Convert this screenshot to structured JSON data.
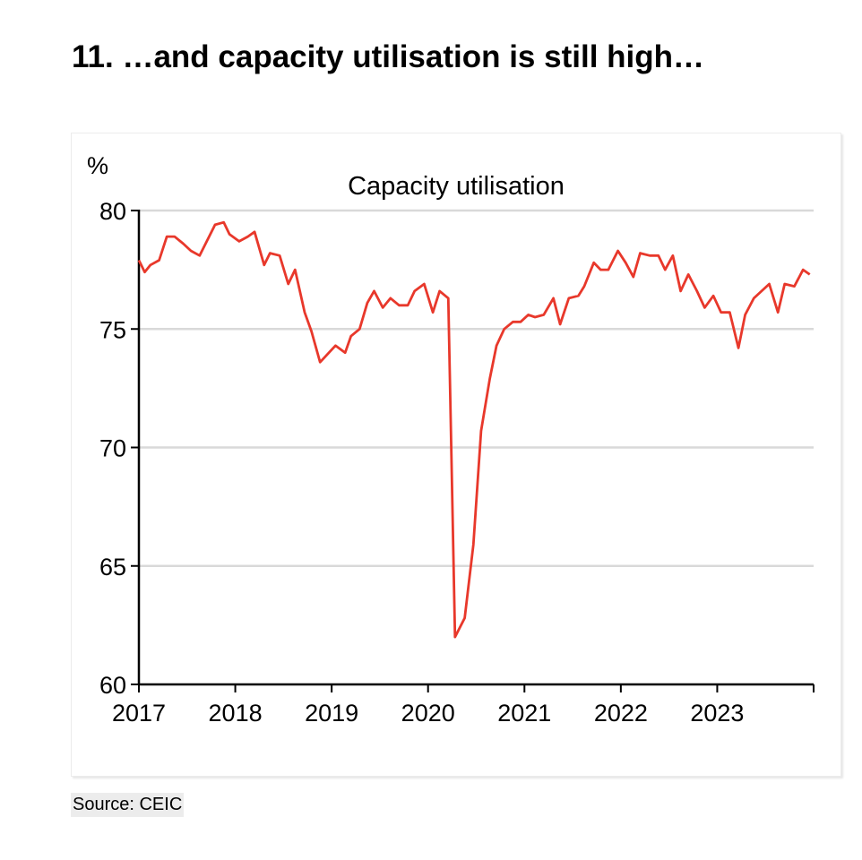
{
  "title": "11. …and capacity utilisation is still high…",
  "source": "Source: CEIC",
  "chart_data": {
    "type": "line",
    "title": "Capacity utilisation",
    "ylabel": "%",
    "xlabel": "",
    "xlim": [
      2017,
      2024
    ],
    "ylim": [
      60,
      80
    ],
    "yticks": [
      60,
      65,
      70,
      75,
      80
    ],
    "xtick_labels": [
      "2017",
      "2018",
      "2019",
      "2020",
      "2021",
      "2022",
      "2023"
    ],
    "grid": "horizontal",
    "series_color": "#e8382b",
    "series": [
      {
        "x": [
          2017.0,
          2017.06,
          2017.12,
          2017.21,
          2017.29,
          2017.37,
          2017.46,
          2017.54,
          2017.63,
          2017.79,
          2017.88,
          2017.94,
          2018.04,
          2018.13,
          2018.2,
          2018.3,
          2018.36,
          2018.46,
          2018.55,
          2018.62,
          2018.72,
          2018.79,
          2018.88,
          2019.04,
          2019.14,
          2019.2,
          2019.29,
          2019.37,
          2019.44,
          2019.53,
          2019.61,
          2019.7,
          2019.79,
          2019.86,
          2019.96,
          2020.05,
          2020.12,
          2020.21,
          2020.28,
          2020.38,
          2020.47,
          2020.55,
          2020.64,
          2020.71,
          2020.79,
          2020.88,
          2020.96,
          2021.04,
          2021.11,
          2021.2,
          2021.3,
          2021.37,
          2021.46,
          2021.56,
          2021.62,
          2021.72,
          2021.79,
          2021.87,
          2021.97,
          2022.05,
          2022.13,
          2022.2,
          2022.3,
          2022.39,
          2022.46,
          2022.54,
          2022.62,
          2022.7,
          2022.79,
          2022.87,
          2022.96,
          2023.04,
          2023.13,
          2023.22,
          2023.29,
          2023.38,
          2023.54,
          2023.63,
          2023.7,
          2023.8,
          2023.89,
          2023.96
        ],
        "y": [
          77.9,
          77.4,
          77.7,
          77.9,
          78.9,
          78.9,
          78.6,
          78.3,
          78.1,
          79.4,
          79.5,
          79.0,
          78.7,
          78.9,
          79.1,
          77.7,
          78.2,
          78.1,
          76.9,
          77.5,
          75.7,
          74.9,
          73.6,
          74.3,
          74.0,
          74.7,
          75.0,
          76.1,
          76.6,
          75.9,
          76.3,
          76.0,
          76.0,
          76.6,
          76.9,
          75.7,
          76.6,
          76.3,
          62.0,
          62.8,
          65.9,
          70.7,
          72.9,
          74.3,
          75.0,
          75.3,
          75.3,
          75.6,
          75.5,
          75.6,
          76.3,
          75.2,
          76.3,
          76.4,
          76.8,
          77.8,
          77.5,
          77.5,
          78.3,
          77.8,
          77.2,
          78.2,
          78.1,
          78.1,
          77.5,
          78.1,
          76.6,
          77.3,
          76.6,
          75.9,
          76.4,
          75.7,
          75.7,
          74.2,
          75.6,
          76.3,
          76.9,
          75.7,
          76.9,
          76.8,
          77.5,
          77.3
        ]
      }
    ]
  }
}
